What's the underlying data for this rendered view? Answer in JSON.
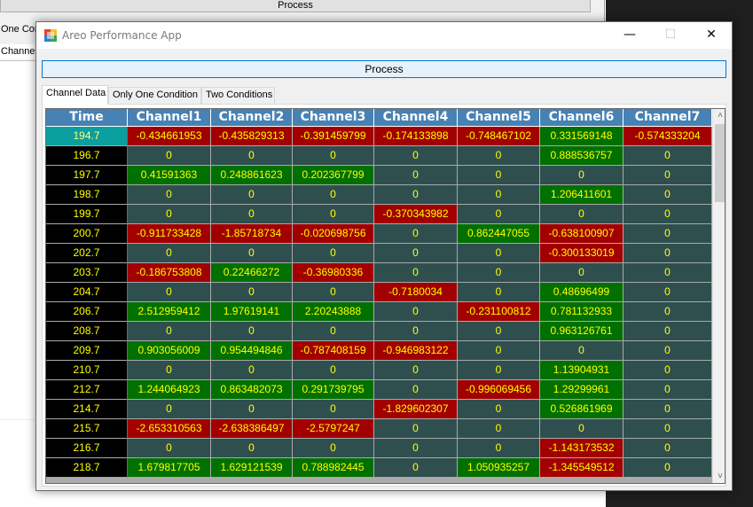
{
  "background_window": {
    "process_label": "Process",
    "tab_one_label": "One Con",
    "tab_channel_label": "Channel"
  },
  "window": {
    "title": "Areo Performance App",
    "minimize_glyph": "—",
    "maximize_glyph": "☐",
    "close_glyph": "✕"
  },
  "process_button": {
    "label": "Process"
  },
  "tabs": [
    {
      "label": "Channel Data",
      "active": true
    },
    {
      "label": "Only One Condition",
      "active": false
    },
    {
      "label": "Two Conditions",
      "active": false
    }
  ],
  "grid": {
    "columns": [
      "Time",
      "Channel1",
      "Channel2",
      "Channel3",
      "Channel4",
      "Channel5",
      "Channel6",
      "Channel7"
    ],
    "rows": [
      [
        "194.7",
        "-0.434661953",
        "-0.435829313",
        "-0.391459799",
        "-0.174133898",
        "-0.748467102",
        "0.331569148",
        "-0.574333204"
      ],
      [
        "196.7",
        "0",
        "0",
        "0",
        "0",
        "0",
        "0.888536757",
        "0"
      ],
      [
        "197.7",
        "0.41591363",
        "0.248861623",
        "0.202367799",
        "0",
        "0",
        "0",
        "0"
      ],
      [
        "198.7",
        "0",
        "0",
        "0",
        "0",
        "0",
        "1.206411601",
        "0"
      ],
      [
        "199.7",
        "0",
        "0",
        "0",
        "-0.370343982",
        "0",
        "0",
        "0"
      ],
      [
        "200.7",
        "-0.911733428",
        "-1.85718734",
        "-0.020698756",
        "0",
        "0.862447055",
        "-0.638100907",
        "0"
      ],
      [
        "202.7",
        "0",
        "0",
        "0",
        "0",
        "0",
        "-0.300133019",
        "0"
      ],
      [
        "203.7",
        "-0.186753808",
        "0.22466272",
        "-0.36980336",
        "0",
        "0",
        "0",
        "0"
      ],
      [
        "204.7",
        "0",
        "0",
        "0",
        "-0.7180034",
        "0",
        "0.48696499",
        "0"
      ],
      [
        "206.7",
        "2.512959412",
        "1.97619141",
        "2.20243888",
        "0",
        "-0.231100812",
        "0.781132933",
        "0"
      ],
      [
        "208.7",
        "0",
        "0",
        "0",
        "0",
        "0",
        "0.963126761",
        "0"
      ],
      [
        "209.7",
        "0.903056009",
        "0.954494846",
        "-0.787408159",
        "-0.946983122",
        "0",
        "0",
        "0"
      ],
      [
        "210.7",
        "0",
        "0",
        "0",
        "0",
        "0",
        "1.13904931",
        "0"
      ],
      [
        "212.7",
        "1.244064923",
        "0.863482073",
        "0.291739795",
        "0",
        "-0.996069456",
        "1.29299961",
        "0"
      ],
      [
        "214.7",
        "0",
        "0",
        "0",
        "-1.829602307",
        "0",
        "0.526861969",
        "0"
      ],
      [
        "215.7",
        "-2.653310563",
        "-2.638386497",
        "-2.5797247",
        "0",
        "0",
        "0",
        "0"
      ],
      [
        "216.7",
        "0",
        "0",
        "0",
        "0",
        "0",
        "-1.143173532",
        "0"
      ],
      [
        "218.7",
        "1.679817705",
        "1.629121539",
        "0.788982445",
        "0",
        "1.050935257",
        "-1.345549512",
        "0"
      ]
    ]
  },
  "scrollbar": {
    "up_glyph": "˄",
    "down_glyph": "˅"
  },
  "colors": {
    "header_bg": "#4682b4",
    "positive_bg": "#007000",
    "negative_bg": "#a20000",
    "zero_bg": "#2f4f4f",
    "time_bg": "#000000",
    "selected_time_bg": "#0b9f9f",
    "cell_text": "#ffff00"
  }
}
